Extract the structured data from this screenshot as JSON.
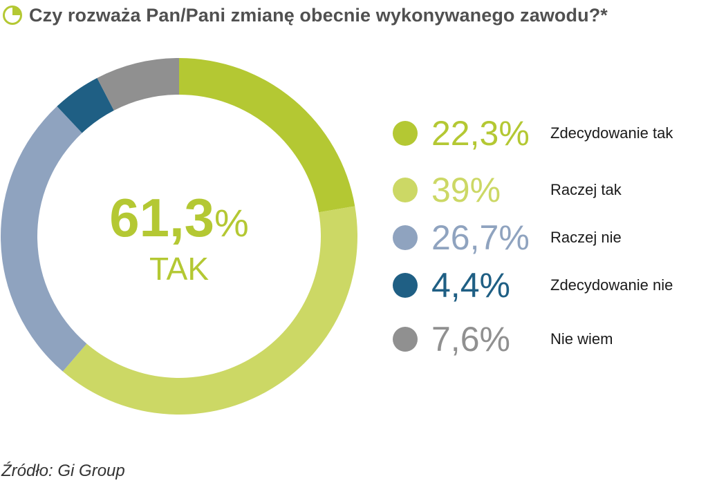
{
  "header": {
    "title": "Czy rozważa Pan/Pani zmianę obecnie wykonywanego zawodu?*",
    "icon": "pie-chart-icon",
    "icon_color": "#b4c833"
  },
  "center": {
    "value": "61,3",
    "unit": "%",
    "label": "TAK",
    "color": "#b4c833"
  },
  "chart_data": {
    "type": "pie",
    "variant": "donut",
    "title": "Czy rozważa Pan/Pani zmianę obecnie wykonywanego zawodu?*",
    "categories": [
      "Zdecydowanie tak",
      "Raczej tak",
      "Raczej nie",
      "Zdecydowanie nie",
      "Nie wiem"
    ],
    "values": [
      22.3,
      39,
      26.7,
      4.4,
      7.6
    ],
    "value_labels": [
      "22,3%",
      "39%",
      "26,7%",
      "4,4%",
      "7,6%"
    ],
    "colors": [
      "#b4c833",
      "#ccd865",
      "#8fa3bf",
      "#1f5f84",
      "#909090"
    ],
    "start_angle_deg": 0,
    "direction": "clockwise",
    "legend_position": "right"
  },
  "footer": {
    "source": "Źródło: Gi Group"
  }
}
